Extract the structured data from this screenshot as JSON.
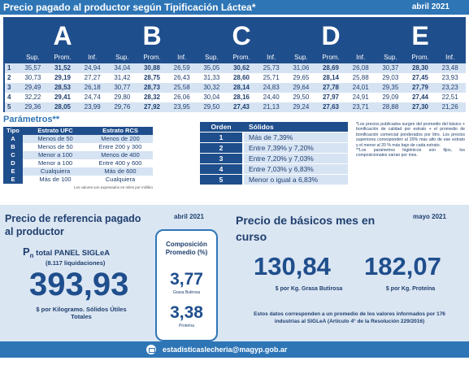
{
  "header": {
    "title": "Precio pagado al productor según Tipificación Láctea*",
    "date": "abril 2021"
  },
  "grades": {
    "letters": [
      "A",
      "B",
      "C",
      "D",
      "E"
    ],
    "subheaders": [
      "Sup.",
      "Prom.",
      "Inf."
    ],
    "rows": [
      {
        "idx": "1",
        "values": [
          "35,57",
          "31,52",
          "24,94",
          "34,04",
          "30,88",
          "26,59",
          "35,05",
          "30,62",
          "25,73",
          "31,06",
          "28,69",
          "26,08",
          "30,37",
          "28,30",
          "23,48"
        ]
      },
      {
        "idx": "2",
        "values": [
          "30,73",
          "29,19",
          "27,27",
          "31,42",
          "28,75",
          "26,43",
          "31,33",
          "28,60",
          "25,71",
          "29,65",
          "28,14",
          "25,88",
          "29,03",
          "27,45",
          "23,93"
        ]
      },
      {
        "idx": "3",
        "values": [
          "29,49",
          "28,53",
          "26,18",
          "30,77",
          "28,73",
          "25,58",
          "30,32",
          "28,14",
          "24,83",
          "29,64",
          "27,78",
          "24,01",
          "29,35",
          "27,79",
          "23,23"
        ]
      },
      {
        "idx": "4",
        "values": [
          "32,22",
          "29,41",
          "24,74",
          "29,80",
          "28,32",
          "26,06",
          "30,04",
          "28,16",
          "24,40",
          "29,50",
          "27,97",
          "24,91",
          "29,09",
          "27,44",
          "22,51"
        ]
      },
      {
        "idx": "5",
        "values": [
          "29,36",
          "28,05",
          "23,99",
          "29,76",
          "27,92",
          "23,95",
          "29,50",
          "27,43",
          "21,13",
          "29,24",
          "27,63",
          "23,71",
          "28,88",
          "27,30",
          "21,26"
        ]
      }
    ]
  },
  "params": {
    "title": "Parámetros**",
    "headers": {
      "tipo": "Tipo",
      "ufc": "Estrato UFC",
      "rcs": "Estrato RCS"
    },
    "rows": [
      {
        "tipo": "A",
        "ufc": "Menos de 50",
        "rcs": "Menos de 200"
      },
      {
        "tipo": "B",
        "ufc": "Menos de 50",
        "rcs": "Entre 200 y 300"
      },
      {
        "tipo": "C",
        "ufc": "Menor a 100",
        "rcs": "Menos de 400"
      },
      {
        "tipo": "D",
        "ufc": "Menor a 100",
        "rcs": "Entre 400 y 600"
      },
      {
        "tipo": "E",
        "ufc": "Cualquiera",
        "rcs": "Más de 600"
      },
      {
        "tipo": "E",
        "ufc": "Más de 100",
        "rcs": "Cualquiera"
      }
    ],
    "note": "Los valores son expresados en miles por mililitro"
  },
  "orden": {
    "headers": {
      "orden": "Orden",
      "solidos": "Sólidos"
    },
    "rows": [
      {
        "n": "1",
        "s": "Más de 7,39%"
      },
      {
        "n": "2",
        "s": "Entre 7,39% y 7,20%"
      },
      {
        "n": "3",
        "s": "Entre 7,20% y 7,03%"
      },
      {
        "n": "4",
        "s": "Entre 7,03% y 6,83%"
      },
      {
        "n": "5",
        "s": "Menor o igual a 6,83%"
      }
    ]
  },
  "notes": {
    "n1": "*Los precios publicados surgen del promedio del básico + bonificación de calidad por estrato + el promedio de bonificación comercial ponderados por litro. Los precios superiores corresponden al 20% mas alto de ese estrato y el menor al 20 % más bajo de cada estrato.",
    "n2": "**Los parámetros higiénicos son fijos, los composicionales varían por mes."
  },
  "reference": {
    "title": "Precio de referencia pagado al productor",
    "date": "abril 2021",
    "pn_prefix": "P",
    "pn_sub": "n",
    "pn_label": " total PANEL SIGLeA",
    "liquidaciones": "(8.117 liquidaciones)",
    "value": "393,93",
    "unit": "$ por Kilogramo. Sólidos Útiles Totales"
  },
  "composition": {
    "title": "Composición Promedio (%)",
    "fat_value": "3,77",
    "fat_label": "Grasa Butirosa",
    "protein_value": "3,38",
    "protein_label": "Proteína"
  },
  "basics": {
    "title": "Precio de básicos mes en curso",
    "date": "mayo 2021",
    "fat_value": "130,84",
    "fat_unit": "$ por Kg. Grasa Butirosa",
    "protein_value": "182,07",
    "protein_unit": "$ por Kg. Proteína",
    "note": "Estos datos corresponden a un promedio de los valores informados por 176 industrias al SIGLeA (Artículo 4° de la Resolución 229/2016)"
  },
  "footer": {
    "email": "estadisticaslecheria@magyp.gob.ar",
    "icon": "mail-icon"
  }
}
